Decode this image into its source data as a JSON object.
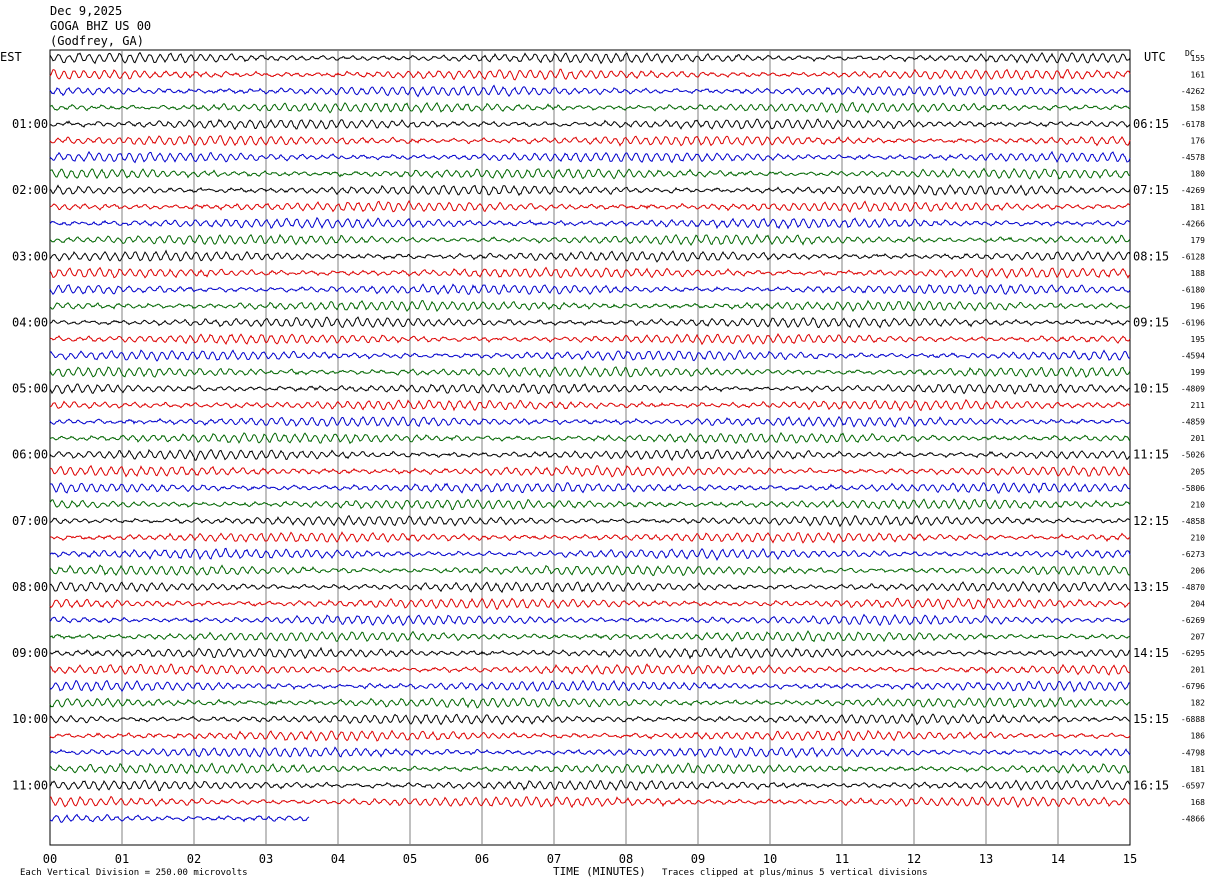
{
  "header": {
    "date": "Dec 9,2025",
    "station": "GOGA BHZ US 00",
    "location": "(Godfrey, GA)"
  },
  "left_tz": "EST",
  "right_tz": "UTC",
  "dc_label": "DC",
  "footer": {
    "vertical_division": "Each Vertical Division =  250.00 microvolts",
    "xlabel": "TIME (MINUTES)",
    "clip_note": "Traces clipped at plus/minus 5 vertical divisions"
  },
  "colors": {
    "trace_cycle": [
      "#000000",
      "#dd0000",
      "#0000cc",
      "#006600"
    ],
    "grid": "#808080"
  },
  "chart_data": {
    "type": "line",
    "kind": "helicorder",
    "xlim": [
      0,
      15
    ],
    "x_ticks": [
      "00",
      "01",
      "02",
      "03",
      "04",
      "05",
      "06",
      "07",
      "08",
      "09",
      "10",
      "11",
      "12",
      "13",
      "14",
      "15"
    ],
    "trace_count": 47,
    "last_trace_end_minute": 3.6,
    "left_hour_labels": [
      "01:00",
      "02:00",
      "03:00",
      "04:00",
      "05:00",
      "06:00",
      "07:00",
      "08:00",
      "09:00",
      "10:00",
      "11:00"
    ],
    "right_hour_labels": [
      "06:15",
      "07:15",
      "08:15",
      "09:15",
      "10:15",
      "11:15",
      "12:15",
      "13:15",
      "14:15",
      "15:15",
      "16:15"
    ],
    "dc_offsets": [
      "155",
      "161",
      "-4262",
      "158",
      "-6178",
      "176",
      "-4578",
      "180",
      "-4269",
      "181",
      "-4266",
      "179",
      "-6128",
      "188",
      "-6180",
      "196",
      "-6196",
      "195",
      "-4594",
      "199",
      "-4809",
      "211",
      "-4859",
      "201",
      "-5026",
      "205",
      "-5806",
      "210",
      "-4858",
      "210",
      "-6273",
      "206",
      "-4870",
      "204",
      "-6269",
      "207",
      "-6295",
      "201",
      "-6796",
      "182",
      "-6888",
      "186",
      "-4798",
      "181",
      "-6597",
      "168",
      "-4866"
    ]
  }
}
